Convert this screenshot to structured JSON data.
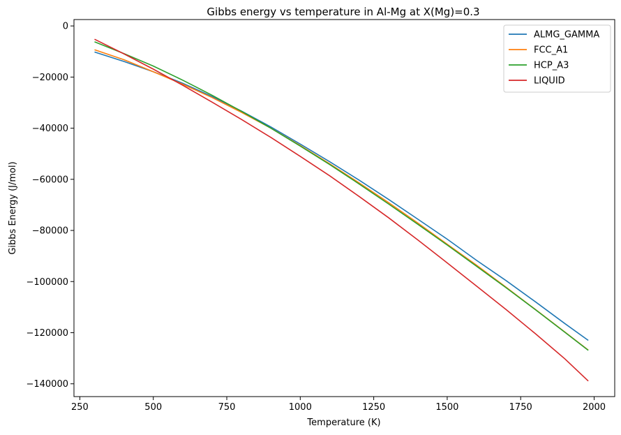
{
  "chart_data": {
    "type": "line",
    "title": "Gibbs energy vs temperature in Al-Mg at X(Mg)=0.3",
    "xlabel": "Temperature (K)",
    "ylabel": "Gibbs Energy (J/mol)",
    "xlim": [
      230,
      2070
    ],
    "ylim": [
      -145000,
      2500
    ],
    "xticks": [
      250,
      500,
      750,
      1000,
      1250,
      1500,
      1750,
      2000
    ],
    "xtick_labels": [
      "250",
      "500",
      "750",
      "1000",
      "1250",
      "1500",
      "1750",
      "2000"
    ],
    "yticks": [
      0,
      -20000,
      -40000,
      -60000,
      -80000,
      -100000,
      -120000,
      -140000
    ],
    "ytick_labels": [
      "0",
      "−20000",
      "−40000",
      "−60000",
      "−80000",
      "−100000",
      "−120000",
      "−140000"
    ],
    "grid": false,
    "legend_position": "top-right",
    "x": [
      300,
      400,
      500,
      600,
      700,
      800,
      900,
      1000,
      1100,
      1200,
      1300,
      1400,
      1500,
      1600,
      1700,
      1800,
      1900,
      1980
    ],
    "series": [
      {
        "name": "ALMG_GAMMA",
        "color": "#1f77b4",
        "values": [
          -10200,
          -13900,
          -17900,
          -22400,
          -27600,
          -33300,
          -39500,
          -46200,
          -53100,
          -60300,
          -67800,
          -75600,
          -83400,
          -91700,
          -99600,
          -107900,
          -116400,
          -123000
        ]
      },
      {
        "name": "FCC_A1",
        "color": "#ff7f0e",
        "values": [
          -9300,
          -13200,
          -17900,
          -22800,
          -28000,
          -33800,
          -40000,
          -46800,
          -53900,
          -61400,
          -69100,
          -77100,
          -85400,
          -93600,
          -102200,
          -110900,
          -119700,
          -126800
        ]
      },
      {
        "name": "HCP_A3",
        "color": "#2ca02c",
        "values": [
          -6200,
          -10800,
          -15700,
          -21200,
          -27100,
          -33400,
          -40000,
          -47000,
          -54200,
          -61800,
          -69600,
          -77600,
          -85700,
          -94000,
          -102400,
          -111000,
          -119800,
          -126900
        ]
      },
      {
        "name": "LIQUID",
        "color": "#d62728",
        "values": [
          -5200,
          -10900,
          -16900,
          -23200,
          -29800,
          -36600,
          -43600,
          -51000,
          -58600,
          -66700,
          -75000,
          -83700,
          -92700,
          -101800,
          -110900,
          -120400,
          -130200,
          -138900
        ]
      }
    ]
  }
}
